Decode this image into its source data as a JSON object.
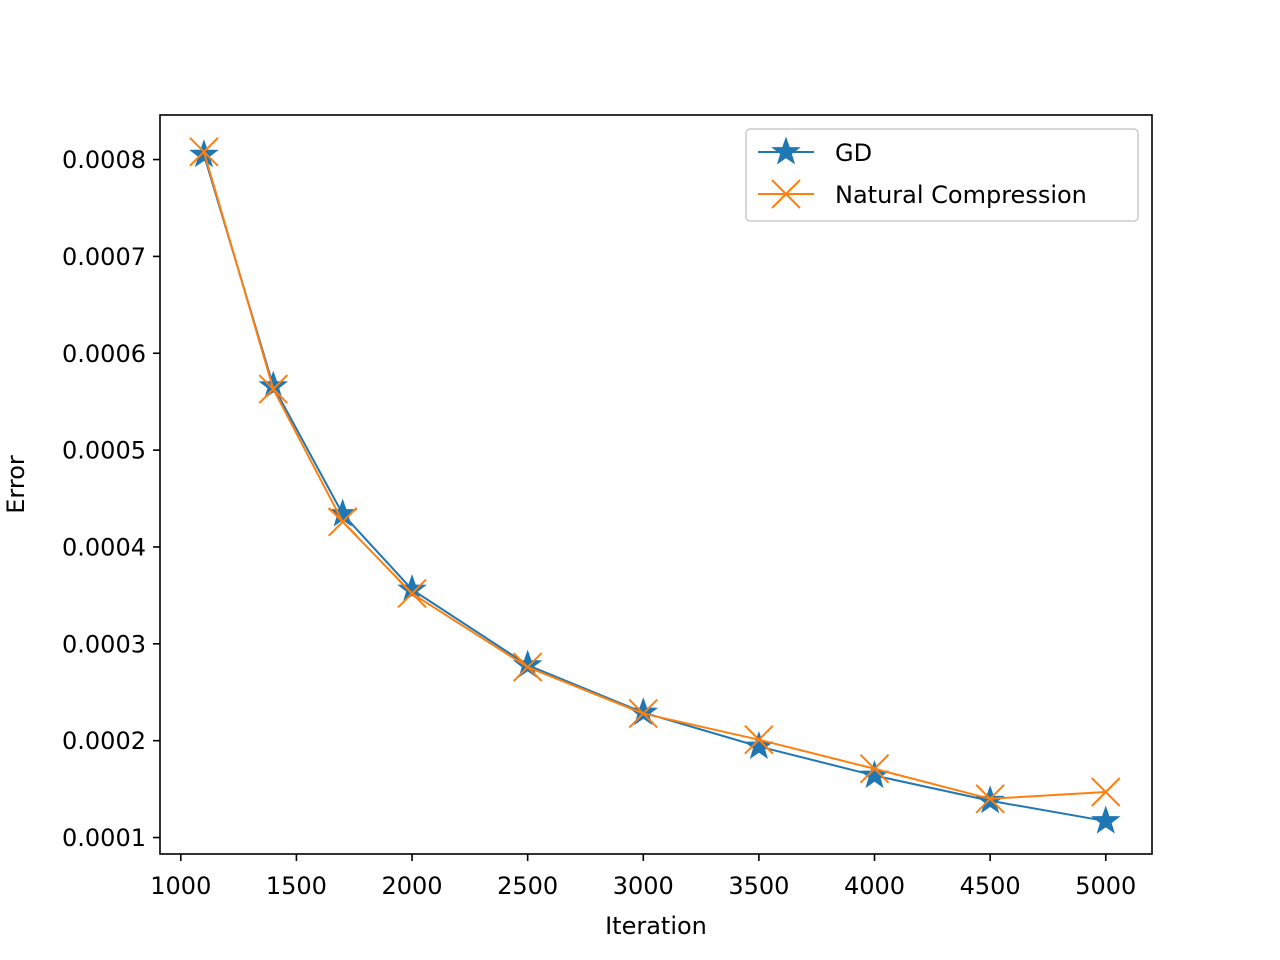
{
  "chart_data": {
    "type": "line",
    "title": "",
    "xlabel": "Iteration",
    "ylabel": "Error",
    "xlim": [
      910,
      5200
    ],
    "ylim": [
      8.3e-05,
      0.000846
    ],
    "xticks": [
      1000,
      1500,
      2000,
      2500,
      3000,
      3500,
      4000,
      4500,
      5000
    ],
    "xtick_labels": [
      "1000",
      "1500",
      "2000",
      "2500",
      "3000",
      "3500",
      "4000",
      "4500",
      "5000"
    ],
    "yticks": [
      0.0001,
      0.0002,
      0.0003,
      0.0004,
      0.0005,
      0.0006,
      0.0007,
      0.0008
    ],
    "ytick_labels": [
      "0.0001",
      "0.0002",
      "0.0003",
      "0.0004",
      "0.0005",
      "0.0006",
      "0.0007",
      "0.0008"
    ],
    "grid": false,
    "legend": "top-right",
    "x": [
      1100,
      1400,
      1700,
      2000,
      2500,
      3000,
      3500,
      4000,
      4500,
      5000
    ],
    "series": [
      {
        "name": "GD",
        "color": "#1f77b4",
        "marker": "star",
        "values": [
          0.000805,
          0.000566,
          0.000434,
          0.000356,
          0.000278,
          0.000229,
          0.000194,
          0.000164,
          0.000138,
          0.000117
        ]
      },
      {
        "name": "Natural Compression",
        "color": "#ff7f0e",
        "marker": "x",
        "values": [
          0.000808,
          0.000563,
          0.000426,
          0.000352,
          0.000276,
          0.000228,
          0.000201,
          0.000171,
          0.00014,
          0.000147
        ]
      }
    ]
  }
}
